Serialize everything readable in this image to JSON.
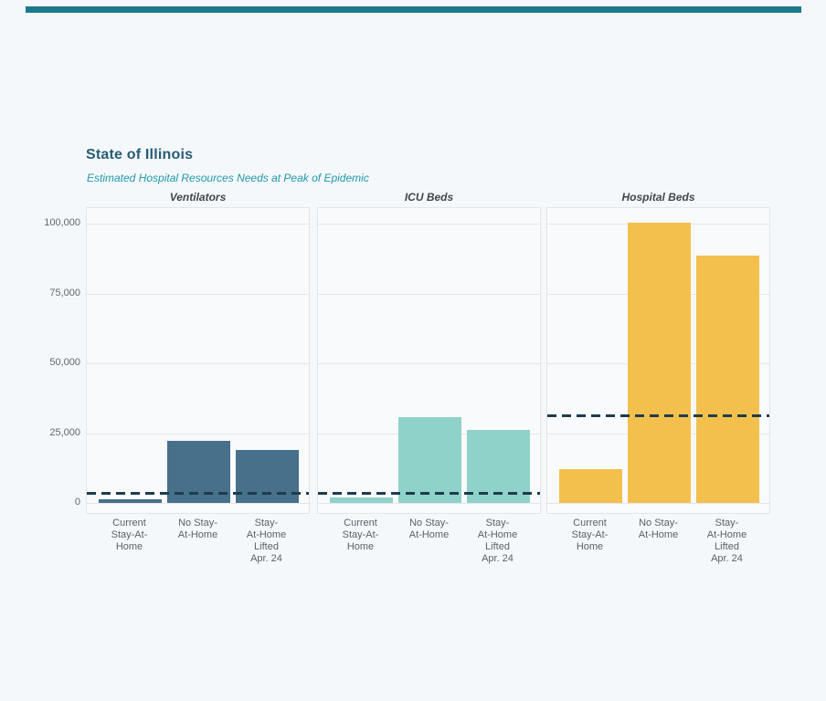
{
  "header": {
    "title": "State of Illinois",
    "subtitle": "Estimated Hospital Resources Needs at Peak of Epidemic"
  },
  "colors": {
    "accent_bar": "#1B7A8D",
    "page_background": "#F5F8FA",
    "panel_background": "#F8FAFB",
    "title_text": "#265C76",
    "subtitle_text": "#2197AD",
    "axis_text": "#60666B",
    "capacity_line": "#1E3C4E",
    "ventilators_bar": "#47708A",
    "icu_bar": "#8FD2C9",
    "hospital_bar": "#F3C04D"
  },
  "chart_data": {
    "type": "bar",
    "title": "State of Illinois",
    "subtitle": "Estimated Hospital Resources Needs at Peak of Epidemic",
    "categories": [
      "Current Stay-At-Home",
      "No Stay-At-Home",
      "Stay-At-Home Lifted Apr. 24"
    ],
    "category_lines": [
      [
        "Current",
        "Stay-At-",
        "Home"
      ],
      [
        "No Stay-",
        "At-Home"
      ],
      [
        "Stay-",
        "At-Home",
        "Lifted",
        "Apr. 24"
      ]
    ],
    "y_tick_values": [
      0,
      25000,
      50000,
      75000,
      100000
    ],
    "y_tick_labels": [
      "0",
      "25,000",
      "50,000",
      "75,000",
      "100,000"
    ],
    "ylim": [
      0,
      105000
    ],
    "grid": true,
    "legend_position": "none",
    "capacity_line_style": "dashed",
    "capacity_line_color": "#1E3C4E",
    "panels": [
      {
        "title": "Ventilators",
        "bar_color": "#47708A",
        "values": [
          1300,
          22400,
          18900
        ],
        "capacity_line": 3500
      },
      {
        "title": "ICU Beds",
        "bar_color": "#8FD2C9",
        "values": [
          2000,
          30700,
          26100
        ],
        "capacity_line": 3600
      },
      {
        "title": "Hospital Beds",
        "bar_color": "#F3C04D",
        "values": [
          12200,
          100400,
          88800
        ],
        "capacity_line": 31300
      }
    ]
  }
}
